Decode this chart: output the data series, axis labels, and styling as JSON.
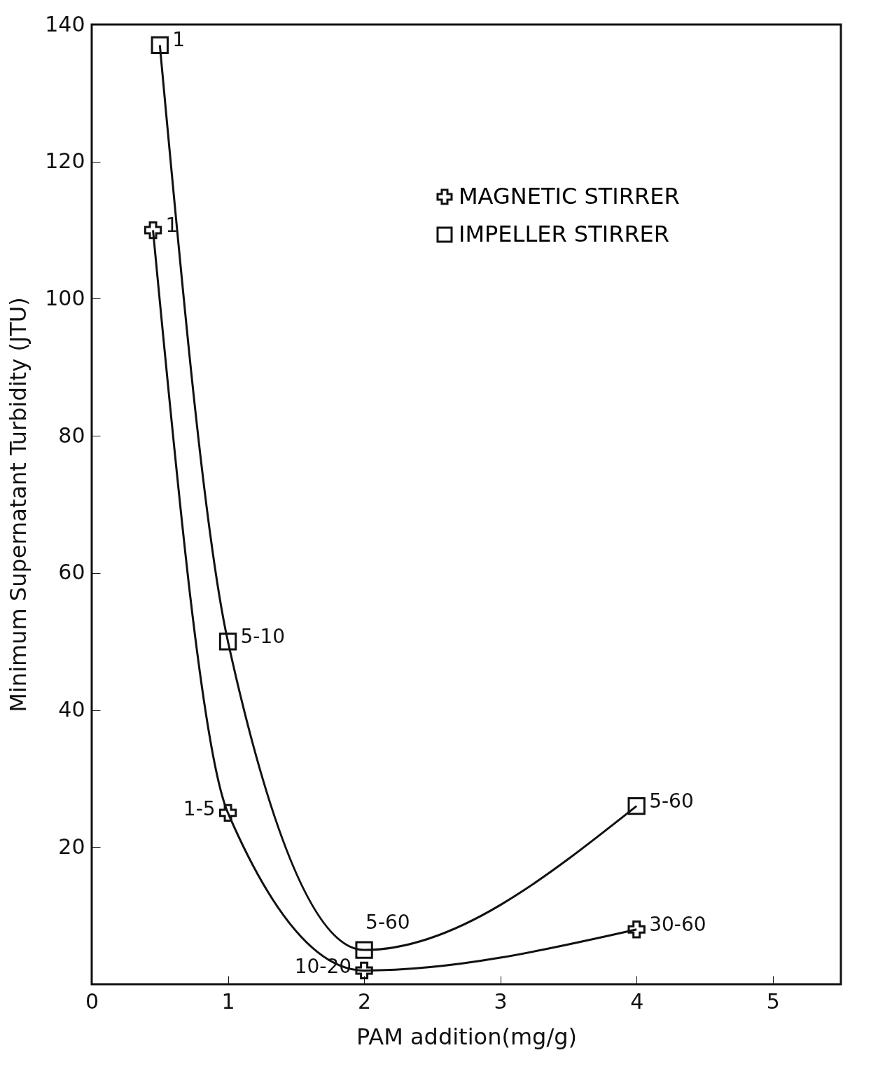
{
  "chart_data": {
    "type": "line",
    "xlabel": "PAM addition(mg/g)",
    "ylabel": "Minimum Supernatant Turbidity (JTU)",
    "xlim": [
      0,
      5.5
    ],
    "xticks": [
      0,
      1,
      2,
      3,
      4,
      5
    ],
    "ylim": [
      0,
      140
    ],
    "yticks": [
      20,
      40,
      60,
      80,
      100,
      120,
      140
    ],
    "grid": false,
    "legend": "top right",
    "line_style": "solid",
    "series": [
      {
        "name": "MAGNETIC STIRRER",
        "color": "#111111",
        "marker": "cross",
        "x": [
          0.45,
          1,
          2,
          4
        ],
        "values": [
          110,
          25,
          2,
          8
        ]
      },
      {
        "name": "IMPELLER STIRRER",
        "color": "#111111",
        "marker": "square",
        "x": [
          0.5,
          1,
          2,
          4
        ],
        "values": [
          137,
          50,
          5,
          26
        ]
      }
    ],
    "annotations": [
      {
        "text": "1",
        "x": 0.45,
        "y": 110
      },
      {
        "text": "1-5",
        "x": 1,
        "y": 25
      },
      {
        "text": "10-20",
        "x": 2,
        "y": 2
      },
      {
        "text": "30-60",
        "x": 4,
        "y": 8
      },
      {
        "text": "1",
        "x": 0.5,
        "y": 137
      },
      {
        "text": "5-10",
        "x": 1,
        "y": 50
      },
      {
        "text": "5-60",
        "x": 2,
        "y": 5
      },
      {
        "text": "5-60",
        "x": 4,
        "y": 26
      }
    ]
  }
}
